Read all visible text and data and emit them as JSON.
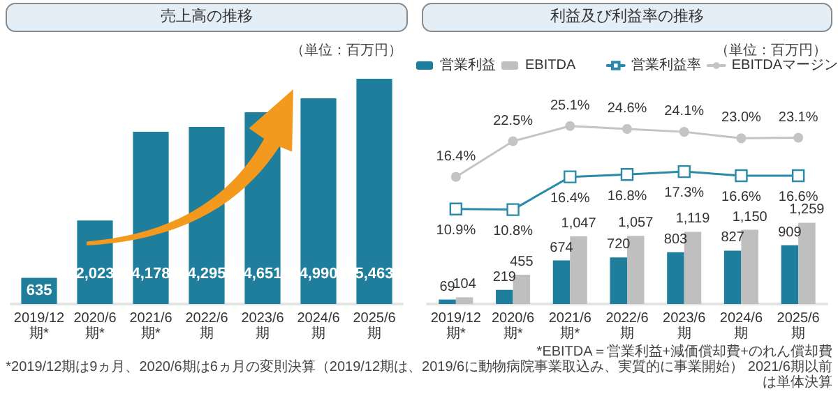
{
  "chart_data": [
    {
      "type": "bar",
      "title": "売上高の推移",
      "subtitle": "（単位：百万円）",
      "categories": [
        "2019/12期*",
        "2020/6期*",
        "2021/6期*",
        "2022/6期",
        "2023/6期",
        "2024/6期",
        "2025/6期"
      ],
      "values": [
        635,
        2023,
        4178,
        4295,
        4651,
        4990,
        5463
      ],
      "color": "#1f7e9c",
      "value_labels": [
        "635",
        "2,023",
        "4,178",
        "4,295",
        "4,651",
        "4,990",
        "5,463"
      ],
      "tick_labels": "x"
    },
    {
      "type": "bar",
      "categories": [
        "2019/12期*",
        "2020/6期*",
        "2021/6期*",
        "2022/6期",
        "2023/6期",
        "2024/6期",
        "2025/6期"
      ],
      "series": [
        {
          "name": "営業利益",
          "color": "#1f7e9c",
          "values": [
            69,
            219,
            674,
            720,
            803,
            827,
            909
          ],
          "value_labels": [
            "69",
            "219",
            "674",
            "720",
            "803",
            "827",
            "909"
          ]
        },
        {
          "name": "EBITDA",
          "color": "#bfbfbf",
          "values": [
            104,
            455,
            1047,
            1057,
            1119,
            1150,
            1259
          ],
          "value_labels": [
            "104",
            "455",
            "1,047",
            "1,057",
            "1,119",
            "1,150",
            "1,259"
          ]
        }
      ],
      "tick_labels": "x",
      "legend": "top left",
      "annotations": [
        "*EBITDA＝営業利益+減価償却費+のれん償却費",
        "*2019/12期は9ヵ月、2020/6期は6ヵ月の変則決算（2019/12期は、2019/6に動物病院事業取込み、実質的に事業開始） 2021/6期以前は単体決算"
      ]
    },
    {
      "type": "line",
      "title": "利益及び利益率の推移",
      "subtitle": "（単位：百万円）",
      "categories": [
        "2019/12期*",
        "2020/6期*",
        "2021/6期*",
        "2022/6期",
        "2023/6期",
        "2024/6期",
        "2025/6期"
      ],
      "series": [
        {
          "name": "営業利益率",
          "marker": "square",
          "color": "#2a8aaa",
          "values": [
            10.9,
            10.8,
            16.4,
            16.8,
            17.3,
            16.6,
            16.6
          ],
          "value_labels": [
            "10.9%",
            "10.8%",
            "16.4%",
            "16.8%",
            "17.3%",
            "16.6%",
            "16.6%"
          ]
        },
        {
          "name": "EBITDAマージン",
          "marker": "circle",
          "color": "#c4c4c4",
          "values": [
            16.4,
            22.5,
            25.1,
            24.6,
            24.1,
            23.0,
            23.1
          ],
          "value_labels": [
            "16.4%",
            "22.5%",
            "25.1%",
            "24.6%",
            "24.1%",
            "23.0%",
            "23.1%"
          ]
        }
      ],
      "tick_labels": false,
      "legend": "top right"
    }
  ]
}
